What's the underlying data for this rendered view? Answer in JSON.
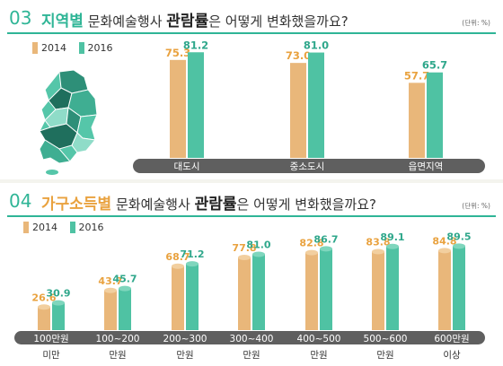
{
  "colors": {
    "y2014": "#e9b77a",
    "y2016": "#4fc2a3",
    "v2014": "#e9a23f",
    "v2016": "#2fa78b",
    "accent": "#2fb596",
    "axis_bar": "#5f5f5f"
  },
  "section1": {
    "number": "03",
    "title_highlight": "지역별",
    "title_mid": "문화예술행사",
    "title_strong": "관람률",
    "title_end": "은 어떻게 변화했을까요?",
    "unit": "(단위: %)",
    "map_icon": "south-korea-map-icon"
  },
  "section2": {
    "number": "04",
    "title_highlight": "가구소득별",
    "title_mid": "문화예술행사",
    "title_strong": "관람률",
    "title_end": "은 어떻게 변화했을까요?",
    "unit": "(단위: %)"
  },
  "chart_data": [
    {
      "type": "bar",
      "categories": [
        "대도시",
        "중소도시",
        "읍면지역"
      ],
      "series": [
        {
          "name": "2014",
          "values": [
            75.3,
            73.0,
            57.7
          ]
        },
        {
          "name": "2016",
          "values": [
            81.2,
            81.0,
            65.7
          ]
        }
      ],
      "ylim": [
        0,
        100
      ]
    },
    {
      "type": "bar",
      "categories": [
        "100만원 미만",
        "100~200 만원",
        "200~300 만원",
        "300~400 만원",
        "400~500 만원",
        "500~600 만원",
        "600만원 이상"
      ],
      "category_lines": [
        [
          "100만원",
          "미만"
        ],
        [
          "100~200",
          "만원"
        ],
        [
          "200~300",
          "만원"
        ],
        [
          "300~400",
          "만원"
        ],
        [
          "400~500",
          "만원"
        ],
        [
          "500~600",
          "만원"
        ],
        [
          "600만원",
          "이상"
        ]
      ],
      "series": [
        {
          "name": "2014",
          "values": [
            26.6,
            43.7,
            68.7,
            77.8,
            82.8,
            83.8,
            84.8
          ]
        },
        {
          "name": "2016",
          "values": [
            30.9,
            45.7,
            71.2,
            81.0,
            86.7,
            89.1,
            89.5
          ]
        }
      ],
      "ylim": [
        0,
        100
      ]
    }
  ]
}
